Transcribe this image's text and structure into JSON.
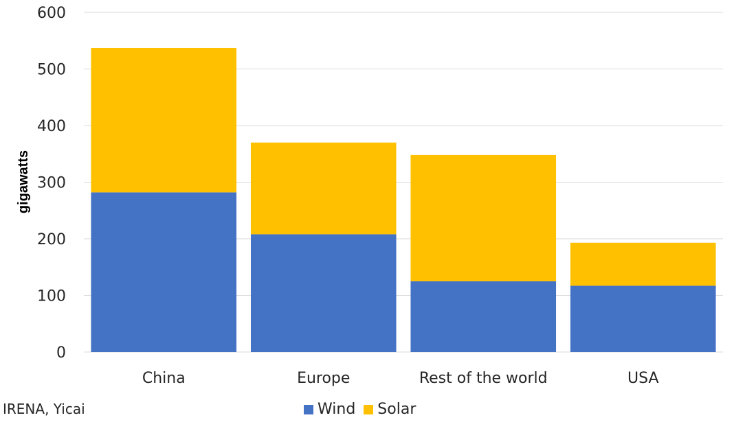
{
  "chart_data": {
    "type": "bar",
    "stacked": true,
    "categories": [
      "China",
      "Europe",
      "Rest of the world",
      "USA"
    ],
    "series": [
      {
        "name": "Wind",
        "color": "#4472C4",
        "values": [
          282,
          208,
          125,
          117
        ]
      },
      {
        "name": "Solar",
        "color": "#FFC000",
        "values": [
          255,
          162,
          223,
          76
        ]
      }
    ],
    "ylabel": "gigawatts",
    "ylim": [
      0,
      600
    ],
    "yticks": [
      "0",
      "100",
      "200",
      "300",
      "400",
      "500",
      "600"
    ],
    "grid": true,
    "legend_position": "bottom"
  },
  "source": "IRENA, Yicai"
}
